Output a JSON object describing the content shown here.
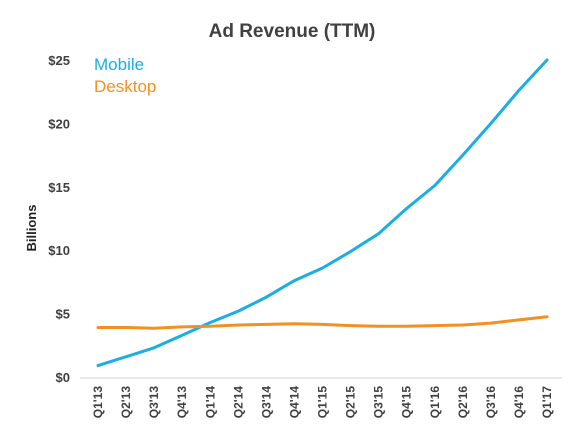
{
  "chart_data": {
    "type": "line",
    "title": "Ad Revenue (TTM)",
    "xlabel": "",
    "ylabel": "Billions",
    "categories": [
      "Q1'13",
      "Q2'13",
      "Q3'13",
      "Q4'13",
      "Q1'14",
      "Q2'14",
      "Q3'14",
      "Q4'14",
      "Q1'15",
      "Q2'15",
      "Q3'15",
      "Q4'15",
      "Q1'16",
      "Q2'16",
      "Q3'16",
      "Q4'16",
      "Q1'17"
    ],
    "series": [
      {
        "name": "Mobile",
        "color": "#1aaee5",
        "values": [
          0.9,
          1.6,
          2.3,
          3.3,
          4.3,
          5.2,
          6.3,
          7.6,
          8.6,
          9.9,
          11.3,
          13.3,
          15.1,
          17.5,
          20.0,
          22.6,
          25.0
        ]
      },
      {
        "name": "Desktop",
        "color": "#f39020",
        "values": [
          3.9,
          3.9,
          3.85,
          3.95,
          4.0,
          4.1,
          4.15,
          4.2,
          4.15,
          4.05,
          4.0,
          4.0,
          4.05,
          4.1,
          4.25,
          4.5,
          4.75
        ]
      }
    ],
    "ylim": [
      0,
      25
    ],
    "yticks": [
      0,
      5,
      10,
      15,
      20,
      25
    ],
    "ytick_labels": [
      "$0",
      "$5",
      "$10",
      "$15",
      "$20",
      "$25"
    ],
    "grid": false,
    "legend_position": "top-left"
  }
}
